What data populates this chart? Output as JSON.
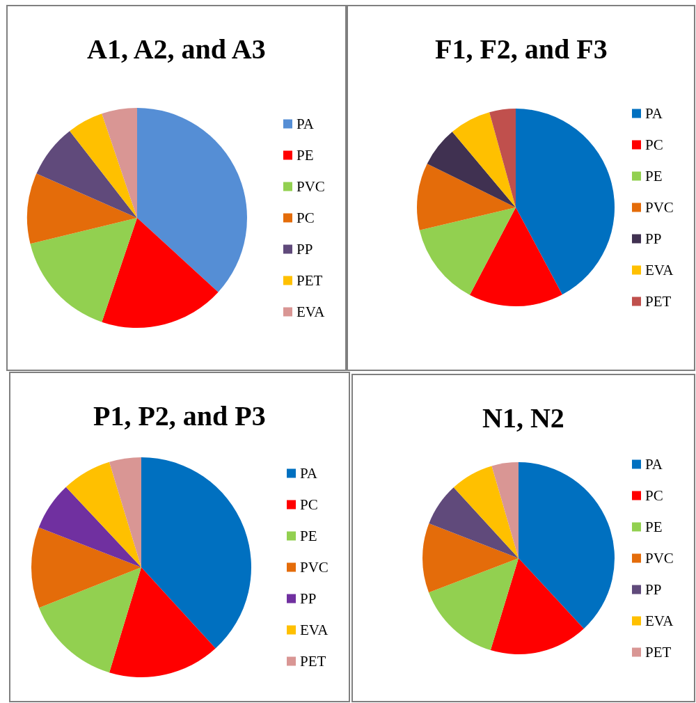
{
  "chart_data": [
    {
      "type": "pie",
      "title": "A1, A2, and A3",
      "legend": "right",
      "categories": [
        "PA",
        "PE",
        "PVC",
        "PC",
        "PP",
        "PET",
        "EVA"
      ],
      "values": [
        36.8,
        18.4,
        16.0,
        10.4,
        7.9,
        5.3,
        5.2
      ],
      "colors": [
        "#558ed5",
        "#ff0000",
        "#92d050",
        "#e46c0a",
        "#604a7b",
        "#ffc000",
        "#d99694"
      ]
    },
    {
      "type": "pie",
      "title": "F1, F2, and F3",
      "legend": "right",
      "categories": [
        "PA",
        "PC",
        "PE",
        "PVC",
        "PP",
        "EVA",
        "PET"
      ],
      "values": [
        42.2,
        15.5,
        13.6,
        11.0,
        6.6,
        6.8,
        4.3
      ],
      "colors": [
        "#0070c0",
        "#ff0000",
        "#92d050",
        "#e46c0a",
        "#403151",
        "#ffc000",
        "#c0504d"
      ]
    },
    {
      "type": "pie",
      "title": "P1, P2, and P3",
      "legend": "right",
      "categories": [
        "PA",
        "PC",
        "PE",
        "PVC",
        "PP",
        "EVA",
        "PET"
      ],
      "values": [
        38.2,
        16.5,
        14.3,
        11.9,
        7.1,
        7.3,
        4.7
      ],
      "colors": [
        "#0070c0",
        "#ff0000",
        "#92d050",
        "#e46c0a",
        "#7030a0",
        "#ffc000",
        "#d99694"
      ]
    },
    {
      "type": "pie",
      "title": "N1, N2",
      "legend": "right",
      "categories": [
        "PA",
        "PC",
        "PE",
        "PVC",
        "PP",
        "EVA",
        "PET"
      ],
      "values": [
        38.1,
        16.6,
        14.5,
        11.7,
        7.3,
        7.3,
        4.5
      ],
      "colors": [
        "#0070c0",
        "#ff0000",
        "#92d050",
        "#e46c0a",
        "#604a7b",
        "#ffc000",
        "#d99694"
      ]
    }
  ]
}
